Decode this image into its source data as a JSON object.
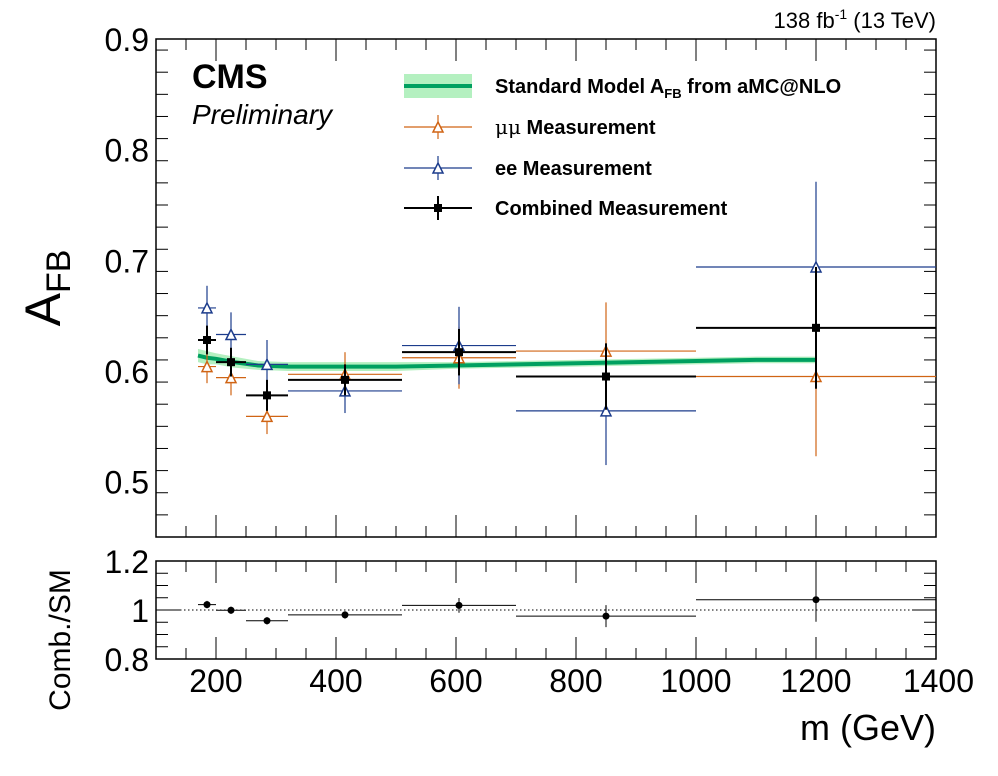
{
  "lumi": {
    "main": "138 fb",
    "sup": "-1",
    "energy": " (13 TeV)"
  },
  "cms": {
    "label": "CMS",
    "status": "Preliminary"
  },
  "legend": {
    "sm": {
      "main": "Standard Model A",
      "sub": "FB",
      "rest": " from aMC@NLO"
    },
    "mumu": {
      "greek": "μμ",
      "rest": " Measurement"
    },
    "ee": "ee Measurement",
    "comb": "Combined Measurement"
  },
  "colors": {
    "sm_line": "#00a060",
    "sm_band": "#b4f0c0",
    "mumu": "#d06414",
    "ee": "#1c3c8c",
    "comb": "#000000"
  },
  "chart_data": [
    {
      "type": "scatter",
      "ylabel": {
        "main": "A",
        "sub": "FB"
      },
      "xlim": [
        100,
        1400
      ],
      "ylim": [
        0.45,
        0.9
      ],
      "yticks": [
        "0.5",
        "0.6",
        "0.7",
        "0.8",
        "0.9"
      ],
      "legend_position": "top-right",
      "series": [
        {
          "name": "Standard Model A_FB from aMC@NLO",
          "style": "band",
          "x": [
            170,
            185,
            200,
            230,
            270,
            320,
            400,
            500,
            600,
            700,
            800,
            900,
            1000,
            1100,
            1200
          ],
          "y": [
            0.614,
            0.612,
            0.611,
            0.608,
            0.605,
            0.604,
            0.604,
            0.604,
            0.605,
            0.606,
            0.607,
            0.608,
            0.609,
            0.61,
            0.61
          ],
          "unc": [
            0.006,
            0.006,
            0.005,
            0.005,
            0.004,
            0.004,
            0.004,
            0.004,
            0.003,
            0.003,
            0.003,
            0.003,
            0.003,
            0.003,
            0.003
          ]
        },
        {
          "name": "μμ Measurement",
          "marker": "open-triangle",
          "points": [
            {
              "x": 185,
              "xlo": 170,
              "xhi": 200,
              "y": 0.604,
              "yerr": 0.015
            },
            {
              "x": 225,
              "xlo": 200,
              "xhi": 250,
              "y": 0.594,
              "yerr": 0.016
            },
            {
              "x": 285,
              "xlo": 250,
              "xhi": 320,
              "y": 0.559,
              "yerr": 0.016
            },
            {
              "x": 415,
              "xlo": 320,
              "xhi": 510,
              "y": 0.597,
              "yerr": 0.02
            },
            {
              "x": 605,
              "xlo": 510,
              "xhi": 700,
              "y": 0.612,
              "yerr": 0.028
            },
            {
              "x": 850,
              "xlo": 700,
              "xhi": 1000,
              "y": 0.618,
              "yerr": 0.044
            },
            {
              "x": 1200,
              "xlo": 1000,
              "xhi": 1400,
              "y": 0.595,
              "yerr": 0.072
            }
          ]
        },
        {
          "name": "ee Measurement",
          "marker": "open-triangle",
          "points": [
            {
              "x": 185,
              "xlo": 170,
              "xhi": 200,
              "y": 0.657,
              "yerr": 0.02
            },
            {
              "x": 225,
              "xlo": 200,
              "xhi": 250,
              "y": 0.633,
              "yerr": 0.02
            },
            {
              "x": 285,
              "xlo": 250,
              "xhi": 320,
              "y": 0.606,
              "yerr": 0.022
            },
            {
              "x": 415,
              "xlo": 320,
              "xhi": 510,
              "y": 0.582,
              "yerr": 0.02
            },
            {
              "x": 605,
              "xlo": 510,
              "xhi": 700,
              "y": 0.623,
              "yerr": 0.035
            },
            {
              "x": 850,
              "xlo": 700,
              "xhi": 1000,
              "y": 0.564,
              "yerr": 0.049
            },
            {
              "x": 1200,
              "xlo": 1000,
              "xhi": 1400,
              "y": 0.694,
              "yerr": 0.077
            }
          ]
        },
        {
          "name": "Combined Measurement",
          "marker": "filled-square",
          "points": [
            {
              "x": 185,
              "xlo": 170,
              "xhi": 200,
              "y": 0.628,
              "yerr": 0.013
            },
            {
              "x": 225,
              "xlo": 200,
              "xhi": 250,
              "y": 0.608,
              "yerr": 0.013
            },
            {
              "x": 285,
              "xlo": 250,
              "xhi": 320,
              "y": 0.578,
              "yerr": 0.014
            },
            {
              "x": 415,
              "xlo": 320,
              "xhi": 510,
              "y": 0.592,
              "yerr": 0.014
            },
            {
              "x": 605,
              "xlo": 510,
              "xhi": 700,
              "y": 0.617,
              "yerr": 0.021
            },
            {
              "x": 850,
              "xlo": 700,
              "xhi": 1000,
              "y": 0.595,
              "yerr": 0.03
            },
            {
              "x": 1200,
              "xlo": 1000,
              "xhi": 1400,
              "y": 0.639,
              "yerr": 0.055
            }
          ]
        }
      ]
    },
    {
      "type": "scatter",
      "xlabel": "m (GeV)",
      "ylabel": "Comb./SM",
      "xlim": [
        100,
        1400
      ],
      "ylim": [
        0.8,
        1.2
      ],
      "xticks": [
        "200",
        "400",
        "600",
        "800",
        "1000",
        "1200",
        "1400"
      ],
      "yticks": [
        "0.8",
        "1",
        "1.2"
      ],
      "reference_line": 1,
      "series": [
        {
          "name": "Comb./SM",
          "points": [
            {
              "x": 185,
              "xlo": 170,
              "xhi": 200,
              "y": 1.022,
              "yerr": 0.015
            },
            {
              "x": 225,
              "xlo": 200,
              "xhi": 250,
              "y": 0.999,
              "yerr": 0.015
            },
            {
              "x": 285,
              "xlo": 250,
              "xhi": 320,
              "y": 0.956,
              "yerr": 0.015
            },
            {
              "x": 415,
              "xlo": 320,
              "xhi": 510,
              "y": 0.98,
              "yerr": 0.015
            },
            {
              "x": 605,
              "xlo": 510,
              "xhi": 700,
              "y": 1.019,
              "yerr": 0.03
            },
            {
              "x": 850,
              "xlo": 700,
              "xhi": 1000,
              "y": 0.975,
              "yerr": 0.045
            },
            {
              "x": 1200,
              "xlo": 1000,
              "xhi": 1400,
              "y": 1.042,
              "yerr": 0.09
            }
          ]
        }
      ]
    }
  ]
}
